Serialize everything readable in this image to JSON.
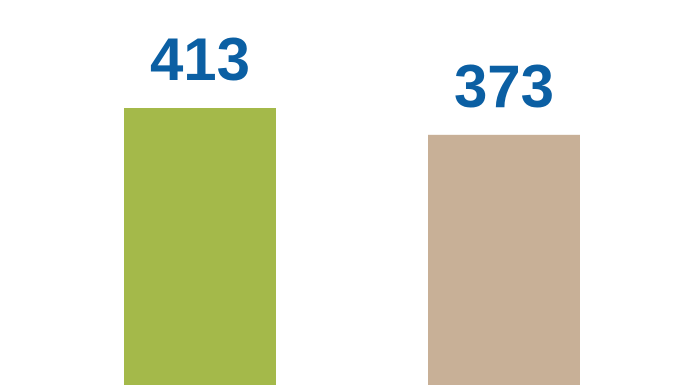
{
  "chart_data": {
    "type": "bar",
    "categories": [
      "",
      ""
    ],
    "values": [
      413,
      373
    ],
    "data_labels": [
      "413",
      "373"
    ],
    "title": "",
    "xlabel": "",
    "ylabel": "",
    "grid": false,
    "legend": "none",
    "bar_colors": [
      "#a4b94a",
      "#c8b097"
    ],
    "label_color": "#0b5fa3"
  }
}
